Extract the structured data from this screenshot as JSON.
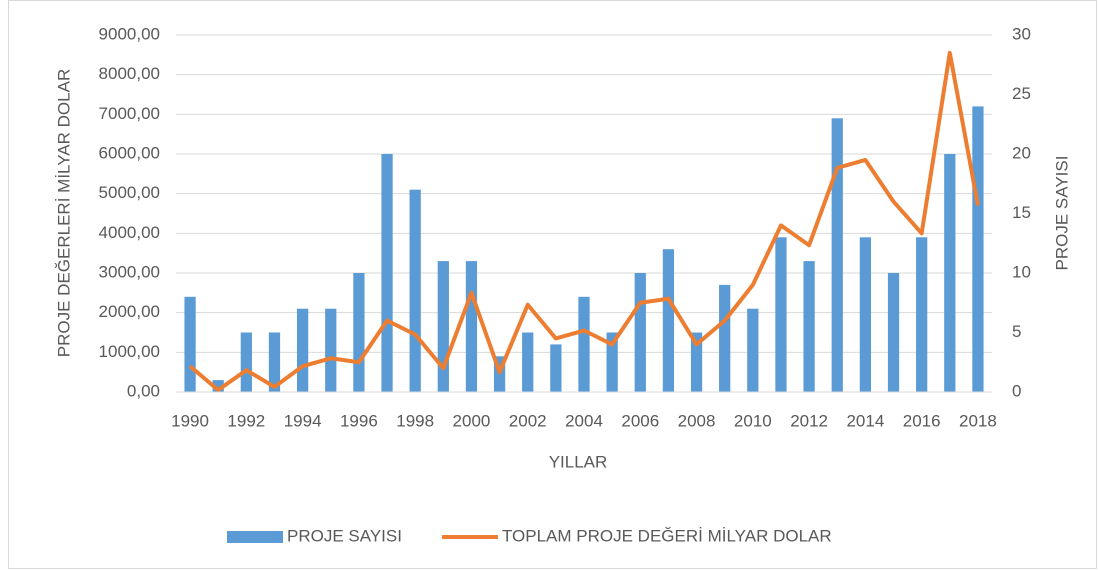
{
  "chart_data": {
    "type": "bar_line",
    "xlabel": "YILLAR",
    "ylabel": "PROJE DEĞERLERİ MİLYAR DOLAR",
    "y2label": "PROJE SAYISI",
    "categories": [
      "1990",
      null,
      "1992",
      null,
      "1994",
      null,
      "1996",
      null,
      "1998",
      null,
      "2000",
      null,
      "2002",
      null,
      "2004",
      null,
      "2006",
      null,
      "2008",
      null,
      "2010",
      null,
      "2012",
      null,
      "2014",
      null,
      "2016",
      null,
      "2018"
    ],
    "series": [
      {
        "name": "PROJE SAYISI",
        "type": "bar",
        "axis": "y2",
        "color": "#5b9bd5",
        "values": [
          8,
          1,
          5,
          5,
          7,
          7,
          10,
          20,
          17,
          11,
          11,
          3,
          5,
          4,
          8,
          5,
          10,
          12,
          5,
          9,
          7,
          13,
          11,
          23,
          13,
          10,
          13,
          20,
          24
        ]
      },
      {
        "name": "TOPLAM PROJE DEĞERİ MİLYAR DOLAR",
        "type": "line",
        "axis": "y",
        "color": "#ed7d31",
        "values": [
          650,
          50,
          550,
          130,
          650,
          850,
          750,
          1800,
          1450,
          600,
          2500,
          500,
          2200,
          1350,
          1550,
          1200,
          2250,
          2350,
          1200,
          1800,
          2700,
          4200,
          3700,
          5650,
          5850,
          4800,
          4000,
          8550,
          4700
        ]
      }
    ],
    "ylim": [
      0,
      9000
    ],
    "yticks": [
      {
        "value": 0,
        "label": "0,00"
      },
      {
        "value": 1000,
        "label": "1000,00"
      },
      {
        "value": 2000,
        "label": "2000,00"
      },
      {
        "value": 3000,
        "label": "3000,00"
      },
      {
        "value": 4000,
        "label": "4000,00"
      },
      {
        "value": 5000,
        "label": "5000,00"
      },
      {
        "value": 6000,
        "label": "6000,00"
      },
      {
        "value": 7000,
        "label": "7000,00"
      },
      {
        "value": 8000,
        "label": "8000,00"
      },
      {
        "value": 9000,
        "label": "9000,00"
      }
    ],
    "y2lim": [
      0,
      30
    ],
    "y2ticks": [
      0,
      5,
      10,
      15,
      20,
      25,
      30
    ],
    "grid": true,
    "legend": "bottom"
  }
}
